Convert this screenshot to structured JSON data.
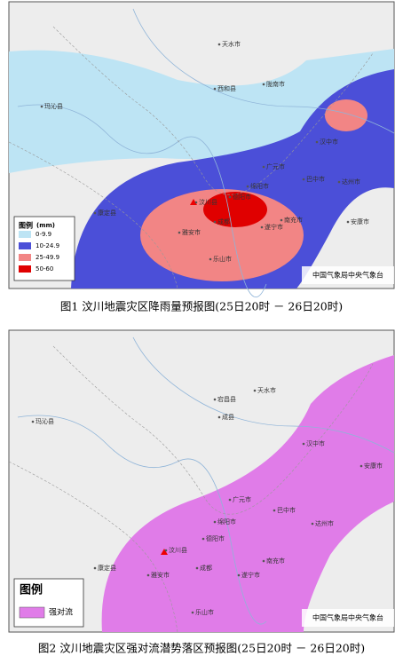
{
  "maps": [
    {
      "legend": {
        "title": "图例",
        "unit": "(mm)",
        "items": [
          {
            "label": "0-9.9",
            "color": "#bde4f4"
          },
          {
            "label": "10-24.9",
            "color": "#4b4fd8"
          },
          {
            "label": "25-49.9",
            "color": "#f28585"
          },
          {
            "label": "50-60",
            "color": "#e00000"
          }
        ]
      },
      "credit": "中国气象局中央气象台",
      "caption": "图1 汶川地震灾区降雨量预报图(25日20时 － 26日20时)",
      "places": [
        "汶川县",
        "成都",
        "德阳市",
        "绵阳市",
        "广元市",
        "巴中市",
        "达州市",
        "南充市",
        "遂宁市",
        "雅安市",
        "乐山市",
        "天水市",
        "陇南市",
        "汉中市",
        "安康市",
        "西和县",
        "康定县",
        "玛沁县"
      ]
    },
    {
      "legend": {
        "title": "图例",
        "items": [
          {
            "label": "强对流",
            "color": "#e07ce8"
          }
        ]
      },
      "credit": "中国气象局中央气象台",
      "caption": "图2 汶川地震灾区强对流潜势落区预报图(25日20时 － 26日20时)",
      "places": [
        "汶川县",
        "成都",
        "德阳市",
        "绵阳市",
        "广元市",
        "巴中市",
        "达州市",
        "南充市",
        "遂宁市",
        "雅安市",
        "乐山市",
        "天水市",
        "汉中市",
        "安康市",
        "宕昌县",
        "成县",
        "康定县",
        "玛沁县"
      ]
    }
  ]
}
